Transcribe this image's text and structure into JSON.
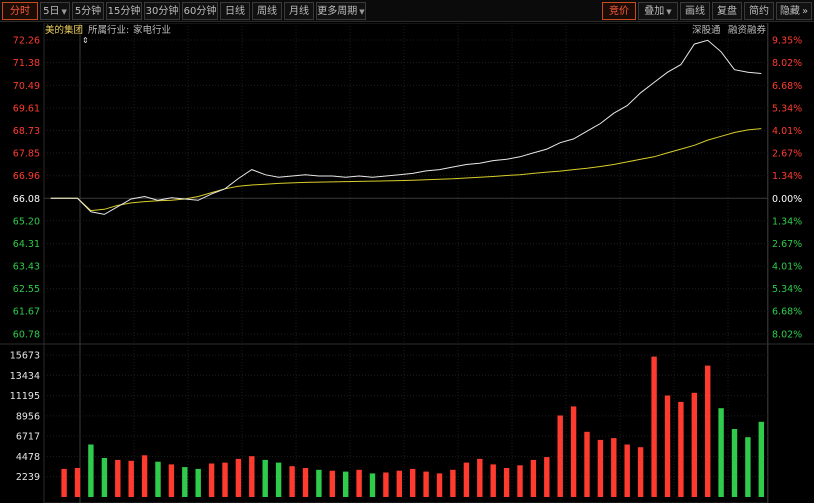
{
  "toolbar": {
    "left": [
      {
        "label": "分时",
        "active": true,
        "caret": false
      },
      {
        "label": "5日",
        "active": false,
        "caret": true
      },
      {
        "label": "5分钟",
        "active": false,
        "caret": false
      },
      {
        "label": "15分钟",
        "active": false,
        "caret": false
      },
      {
        "label": "30分钟",
        "active": false,
        "caret": false
      },
      {
        "label": "60分钟",
        "active": false,
        "caret": false
      },
      {
        "label": "日线",
        "active": false,
        "caret": false
      },
      {
        "label": "周线",
        "active": false,
        "caret": false
      },
      {
        "label": "月线",
        "active": false,
        "caret": false
      },
      {
        "label": "更多周期",
        "active": false,
        "caret": true
      }
    ],
    "right": [
      {
        "label": "竞价",
        "active": true,
        "caret": false
      },
      {
        "label": "叠加",
        "active": false,
        "caret": true
      },
      {
        "label": "画线",
        "active": false,
        "caret": false
      },
      {
        "label": "复盘",
        "active": false,
        "caret": false
      },
      {
        "label": "简约",
        "active": false,
        "caret": false
      },
      {
        "label": "隐藏",
        "active": false,
        "caret": false,
        "suffix": "»"
      }
    ]
  },
  "header": {
    "stock_name": "美的集团",
    "industry_label": "所属行业:",
    "industry": "家电行业",
    "tags": [
      "深股通",
      "融资融券"
    ]
  },
  "colors": {
    "background": "#000000",
    "up": "#ff3b30",
    "down": "#2fcc4c",
    "neutral": "#ffffff",
    "price_line": "#e8e8e8",
    "avg_line": "#d9cd2a",
    "stock_name": "#f0d35c",
    "grid": "#1e1e1e"
  },
  "chart_data": {
    "type": "line",
    "prev_close": 66.08,
    "price_ticks": [
      72.26,
      71.38,
      70.49,
      69.61,
      68.73,
      67.85,
      66.96,
      66.08,
      65.2,
      64.31,
      63.43,
      62.55,
      61.67,
      60.78
    ],
    "pct_ticks": [
      "9.35%",
      "8.02%",
      "6.68%",
      "5.34%",
      "4.01%",
      "2.67%",
      "1.34%",
      "0.00%",
      "1.34%",
      "2.67%",
      "4.01%",
      "5.34%",
      "6.68%",
      "8.02%"
    ],
    "volume_ticks": [
      15673,
      13434,
      11195,
      8956,
      6717,
      4478,
      2239
    ],
    "ylim": [
      60.78,
      72.26
    ],
    "volume_ylim": [
      0,
      15673
    ],
    "price": [
      66.08,
      66.08,
      66.08,
      65.55,
      65.45,
      65.75,
      66.05,
      66.15,
      66.0,
      66.1,
      66.05,
      66.0,
      66.25,
      66.45,
      66.85,
      67.2,
      67.0,
      66.9,
      66.95,
      67.0,
      66.95,
      66.95,
      66.9,
      66.95,
      66.9,
      66.95,
      67.0,
      67.05,
      67.15,
      67.2,
      67.3,
      67.4,
      67.45,
      67.55,
      67.6,
      67.7,
      67.85,
      68.0,
      68.25,
      68.4,
      68.7,
      69.0,
      69.4,
      69.7,
      70.2,
      70.6,
      71.0,
      71.3,
      72.1,
      72.25,
      71.8,
      71.1,
      71.0,
      70.95
    ],
    "average": [
      66.08,
      66.08,
      66.08,
      65.6,
      65.65,
      65.8,
      65.9,
      65.95,
      65.98,
      66.0,
      66.05,
      66.15,
      66.3,
      66.45,
      66.55,
      66.6,
      66.63,
      66.66,
      66.68,
      66.7,
      66.71,
      66.72,
      66.73,
      66.74,
      66.75,
      66.76,
      66.77,
      66.78,
      66.8,
      66.82,
      66.84,
      66.87,
      66.9,
      66.93,
      66.97,
      67.0,
      67.05,
      67.1,
      67.14,
      67.2,
      67.25,
      67.32,
      67.4,
      67.5,
      67.6,
      67.7,
      67.85,
      68.0,
      68.15,
      68.35,
      68.5,
      68.65,
      68.75,
      68.8
    ],
    "volume": [
      0,
      3100,
      3200,
      5800,
      4300,
      4100,
      4000,
      4600,
      3900,
      3600,
      3300,
      3100,
      3700,
      3800,
      4200,
      4500,
      4100,
      3800,
      3400,
      3200,
      3000,
      2900,
      2800,
      3000,
      2600,
      2700,
      2900,
      3100,
      2800,
      2600,
      3000,
      3800,
      4200,
      3600,
      3200,
      3500,
      4100,
      4400,
      9000,
      10000,
      7200,
      6300,
      6500,
      5800,
      5500,
      15500,
      11200,
      10500,
      11500,
      14500,
      9800,
      7500,
      6600,
      8300
    ]
  }
}
